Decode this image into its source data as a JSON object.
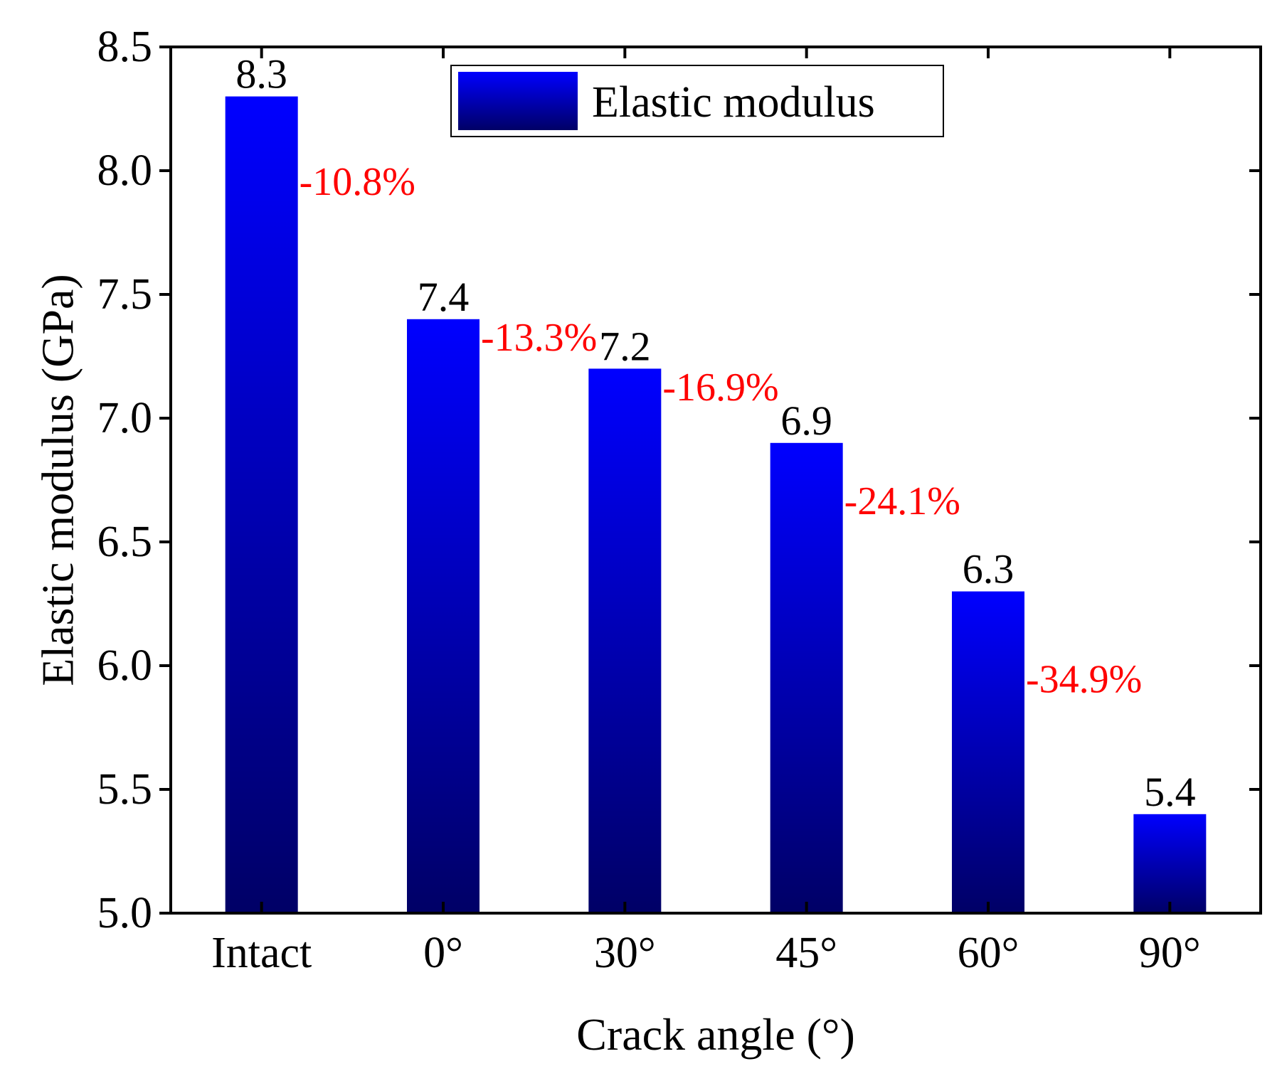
{
  "chart_data": {
    "type": "bar",
    "title": "",
    "xlabel": "Crack angle (°)",
    "ylabel": "Elastic modulus (GPa)",
    "ylim": [
      5.0,
      8.5
    ],
    "yticks": [
      "5.0",
      "5.5",
      "6.0",
      "6.5",
      "7.0",
      "7.5",
      "8.0",
      "8.5"
    ],
    "categories": [
      "Intact",
      "0°",
      "30°",
      "45°",
      "60°",
      "90°"
    ],
    "series": [
      {
        "name": "Elastic modulus",
        "values": [
          8.3,
          7.4,
          7.2,
          6.9,
          6.3,
          5.4
        ]
      }
    ],
    "value_labels": [
      "8.3",
      "7.4",
      "7.2",
      "6.9",
      "6.3",
      "5.4"
    ],
    "annotations": [
      {
        "text": "-10.8%",
        "y": 7.96,
        "after_category": "Intact"
      },
      {
        "text": "-13.3%",
        "y": 7.33,
        "after_category": "0°"
      },
      {
        "text": "-16.9%",
        "y": 7.13,
        "after_category": "30°"
      },
      {
        "text": "-24.1%",
        "y": 6.67,
        "after_category": "45°"
      },
      {
        "text": "-34.9%",
        "y": 5.95,
        "after_category": "60°"
      }
    ],
    "legend": {
      "position": "top-center",
      "label": "Elastic modulus"
    },
    "colors": {
      "bar_top": "#0000ff",
      "bar_bottom": "#000066",
      "annotation": "#ff0000",
      "axis": "#000000"
    }
  }
}
